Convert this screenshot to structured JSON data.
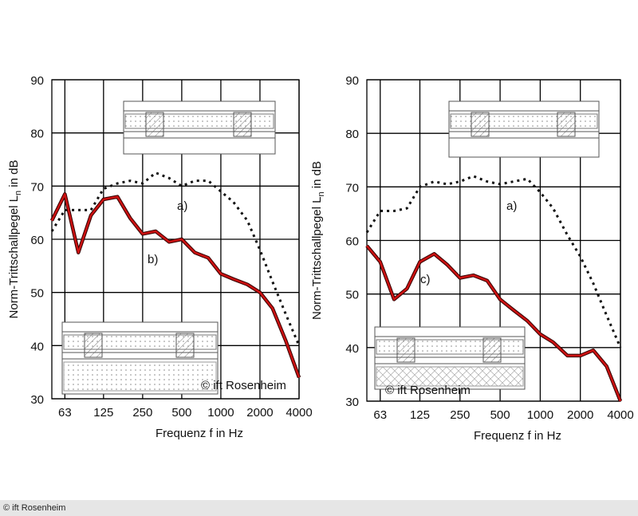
{
  "chart_data": [
    {
      "type": "line",
      "ylabel": "Norm-Trittschallpegel L",
      "ylabel_sub": "n",
      "ylabel_end": " in dB",
      "xlabel": "Frequenz f in Hz",
      "x": [
        50,
        63,
        80,
        100,
        125,
        160,
        200,
        250,
        315,
        400,
        500,
        630,
        800,
        1000,
        1250,
        1600,
        2000,
        2500,
        3150,
        4000
      ],
      "xlim": [
        50,
        4000
      ],
      "xticks": [
        63,
        125,
        250,
        500,
        1000,
        2000,
        4000
      ],
      "xscale": "log",
      "ylim": [
        30,
        90
      ],
      "yticks": [
        30,
        40,
        50,
        60,
        70,
        80,
        90
      ],
      "grid": true,
      "annotations": [
        "a)",
        "b)",
        "© ift Rosenheim"
      ],
      "series": [
        {
          "name": "a)",
          "color": "#111111",
          "style": "dotted",
          "values": [
            61.5,
            65.5,
            65.5,
            65.5,
            69.5,
            70.5,
            71,
            70.5,
            72.5,
            71.5,
            70,
            71,
            71,
            69,
            67,
            63.5,
            58,
            52,
            46,
            40
          ]
        },
        {
          "name": "b)",
          "color": "#cc1111",
          "style": "solid",
          "values": [
            63.5,
            68.5,
            57.5,
            64.5,
            67.5,
            68,
            64,
            61,
            61.5,
            59.5,
            60,
            57.5,
            56.5,
            53.5,
            52.5,
            51.5,
            50,
            47,
            41,
            34
          ]
        }
      ]
    },
    {
      "type": "line",
      "ylabel": "Norm-Trittschallpegel L",
      "ylabel_sub": "n",
      "ylabel_end": " in dB",
      "xlabel": "Frequenz f in Hz",
      "x": [
        50,
        63,
        80,
        100,
        125,
        160,
        200,
        250,
        315,
        400,
        500,
        630,
        800,
        1000,
        1250,
        1600,
        2000,
        2500,
        3150,
        4000
      ],
      "xlim": [
        50,
        4000
      ],
      "xticks": [
        63,
        125,
        250,
        500,
        1000,
        2000,
        4000
      ],
      "xscale": "log",
      "ylim": [
        30,
        90
      ],
      "yticks": [
        30,
        40,
        50,
        60,
        70,
        80,
        90
      ],
      "grid": true,
      "annotations": [
        "a)",
        "c)",
        "© ift Rosenheim"
      ],
      "series": [
        {
          "name": "a)",
          "color": "#111111",
          "style": "dotted",
          "values": [
            61.5,
            65.5,
            65.5,
            66,
            70,
            71,
            70.5,
            71,
            72,
            71,
            70.5,
            71,
            71.5,
            69,
            66,
            61,
            57,
            52,
            46,
            40
          ]
        },
        {
          "name": "c)",
          "color": "#cc1111",
          "style": "solid",
          "values": [
            59,
            56,
            49,
            51,
            56,
            57.5,
            55.5,
            53,
            53.5,
            52.5,
            49,
            47,
            45,
            42.5,
            41,
            38.5,
            38.5,
            39.5,
            36.5,
            30
          ]
        }
      ]
    }
  ],
  "footer": "© ift Rosenheim"
}
